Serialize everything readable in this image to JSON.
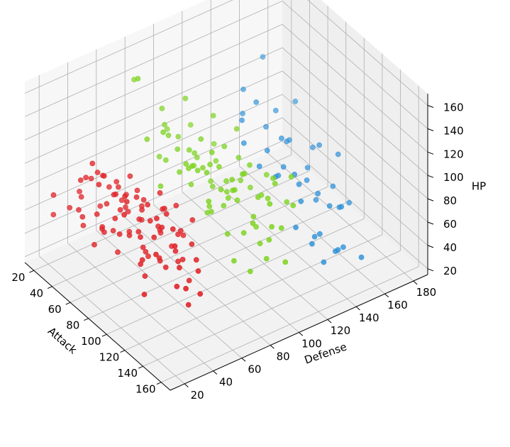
{
  "chart_data": {
    "type": "scatter",
    "title": "",
    "xlabel": "Attack",
    "ylabel": "Defense",
    "zlabel": "HP",
    "xlim": [
      10,
      170
    ],
    "ylim": [
      10,
      190
    ],
    "zlim": [
      15,
      170
    ],
    "xticks": [
      20,
      40,
      60,
      80,
      100,
      120,
      140,
      160
    ],
    "yticks": [
      20,
      40,
      60,
      80,
      100,
      120,
      140,
      160,
      180
    ],
    "zticks": [
      20,
      40,
      60,
      80,
      100,
      120,
      140,
      160
    ],
    "grid": true,
    "legend": "none",
    "series": [
      {
        "color": "#e0262b",
        "points": [
          [
            10,
            30,
            45
          ],
          [
            15,
            45,
            60
          ],
          [
            20,
            35,
            55
          ],
          [
            18,
            25,
            70
          ],
          [
            25,
            40,
            65
          ],
          [
            30,
            50,
            55
          ],
          [
            28,
            45,
            80
          ],
          [
            35,
            35,
            50
          ],
          [
            32,
            55,
            70
          ],
          [
            38,
            60,
            60
          ],
          [
            40,
            45,
            45
          ],
          [
            42,
            30,
            65
          ],
          [
            45,
            50,
            75
          ],
          [
            48,
            40,
            55
          ],
          [
            50,
            55,
            65
          ],
          [
            52,
            65,
            50
          ],
          [
            55,
            45,
            85
          ],
          [
            58,
            35,
            60
          ],
          [
            60,
            60,
            70
          ],
          [
            62,
            50,
            55
          ],
          [
            65,
            40,
            45
          ],
          [
            68,
            55,
            75
          ],
          [
            70,
            45,
            60
          ],
          [
            72,
            65,
            55
          ],
          [
            75,
            35,
            70
          ],
          [
            78,
            60,
            65
          ],
          [
            80,
            50,
            50
          ],
          [
            82,
            70,
            80
          ],
          [
            85,
            45,
            60
          ],
          [
            88,
            55,
            45
          ],
          [
            90,
            40,
            75
          ],
          [
            92,
            65,
            65
          ],
          [
            95,
            50,
            55
          ],
          [
            98,
            35,
            60
          ],
          [
            100,
            60,
            50
          ],
          [
            40,
            30,
            95
          ],
          [
            45,
            35,
            110
          ],
          [
            50,
            40,
            100
          ],
          [
            35,
            45,
            90
          ],
          [
            60,
            30,
            105
          ],
          [
            55,
            55,
            95
          ],
          [
            65,
            45,
            90
          ],
          [
            70,
            55,
            85
          ],
          [
            75,
            40,
            95
          ],
          [
            80,
            35,
            90
          ],
          [
            85,
            60,
            85
          ],
          [
            90,
            45,
            100
          ],
          [
            95,
            55,
            90
          ],
          [
            100,
            45,
            95
          ],
          [
            105,
            40,
            85
          ],
          [
            110,
            50,
            90
          ],
          [
            115,
            35,
            80
          ],
          [
            120,
            45,
            85
          ],
          [
            30,
            35,
            60
          ],
          [
            45,
            60,
            55
          ],
          [
            55,
            30,
            50
          ],
          [
            65,
            70,
            45
          ],
          [
            75,
            55,
            40
          ],
          [
            85,
            65,
            50
          ],
          [
            95,
            40,
            45
          ],
          [
            105,
            60,
            55
          ],
          [
            110,
            30,
            45
          ],
          [
            120,
            55,
            50
          ],
          [
            130,
            40,
            60
          ],
          [
            135,
            45,
            45
          ],
          [
            140,
            50,
            55
          ],
          [
            100,
            35,
            65
          ],
          [
            90,
            70,
            60
          ],
          [
            80,
            45,
            70
          ],
          [
            70,
            35,
            80
          ],
          [
            60,
            45,
            75
          ],
          [
            50,
            50,
            85
          ],
          [
            40,
            55,
            80
          ],
          [
            30,
            40,
            85
          ],
          [
            25,
            55,
            75
          ],
          [
            35,
            65,
            60
          ],
          [
            45,
            45,
            70
          ],
          [
            55,
            60,
            80
          ],
          [
            65,
            55,
            65
          ],
          [
            75,
            65,
            75
          ],
          [
            85,
            50,
            80
          ],
          [
            95,
            65,
            70
          ],
          [
            105,
            55,
            65
          ],
          [
            115,
            60,
            75
          ],
          [
            125,
            45,
            70
          ],
          [
            130,
            55,
            65
          ],
          [
            60,
            40,
            60
          ],
          [
            70,
            50,
            90
          ],
          [
            80,
            60,
            95
          ],
          [
            90,
            55,
            75
          ],
          [
            50,
            35,
            70
          ],
          [
            110,
            45,
            60
          ],
          [
            120,
            60,
            65
          ],
          [
            100,
            70,
            80
          ],
          [
            140,
            40,
            65
          ]
        ]
      },
      {
        "color": "#7ed321",
        "points": [
          [
            20,
            80,
            140
          ],
          [
            40,
            70,
            160
          ],
          [
            35,
            90,
            120
          ],
          [
            50,
            85,
            110
          ],
          [
            60,
            75,
            125
          ],
          [
            45,
            95,
            100
          ],
          [
            70,
            80,
            95
          ],
          [
            55,
            100,
            90
          ],
          [
            65,
            90,
            105
          ],
          [
            75,
            85,
            85
          ],
          [
            80,
            95,
            100
          ],
          [
            85,
            75,
            115
          ],
          [
            90,
            100,
            90
          ],
          [
            95,
            85,
            80
          ],
          [
            100,
            90,
            95
          ],
          [
            105,
            80,
            85
          ],
          [
            110,
            95,
            90
          ],
          [
            115,
            85,
            70
          ],
          [
            120,
            100,
            80
          ],
          [
            125,
            90,
            75
          ],
          [
            130,
            80,
            60
          ],
          [
            135,
            95,
            70
          ],
          [
            140,
            85,
            55
          ],
          [
            60,
            110,
            120
          ],
          [
            70,
            120,
            110
          ],
          [
            80,
            115,
            95
          ],
          [
            90,
            110,
            85
          ],
          [
            100,
            105,
            100
          ],
          [
            110,
            120,
            95
          ],
          [
            120,
            110,
            90
          ],
          [
            50,
            70,
            115
          ],
          [
            60,
            85,
            105
          ],
          [
            70,
            95,
            115
          ],
          [
            80,
            105,
            110
          ],
          [
            90,
            90,
            120
          ],
          [
            100,
            110,
            105
          ],
          [
            110,
            100,
            110
          ],
          [
            120,
            115,
            100
          ],
          [
            130,
            105,
            95
          ],
          [
            140,
            100,
            85
          ],
          [
            45,
            100,
            130
          ],
          [
            55,
            80,
            95
          ],
          [
            65,
            70,
            85
          ],
          [
            75,
            100,
            75
          ],
          [
            85,
            90,
            65
          ],
          [
            95,
            95,
            75
          ],
          [
            105,
            115,
            80
          ],
          [
            115,
            105,
            65
          ],
          [
            125,
            120,
            85
          ],
          [
            135,
            110,
            75
          ],
          [
            150,
            90,
            70
          ],
          [
            140,
            115,
            95
          ],
          [
            130,
            120,
            110
          ],
          [
            120,
            85,
            120
          ],
          [
            110,
            75,
            100
          ],
          [
            100,
            80,
            115
          ],
          [
            90,
            80,
            110
          ],
          [
            80,
            80,
            105
          ],
          [
            70,
            90,
            95
          ],
          [
            60,
            95,
            85
          ],
          [
            50,
            105,
            80
          ],
          [
            40,
            85,
            85
          ],
          [
            30,
            95,
            100
          ],
          [
            25,
            100,
            90
          ],
          [
            35,
            110,
            95
          ],
          [
            45,
            120,
            80
          ],
          [
            55,
            115,
            75
          ],
          [
            65,
            105,
            70
          ],
          [
            75,
            110,
            65
          ],
          [
            85,
            120,
            70
          ],
          [
            95,
            125,
            85
          ],
          [
            105,
            95,
            95
          ],
          [
            115,
            90,
            105
          ],
          [
            125,
            100,
            100
          ],
          [
            135,
            90,
            90
          ],
          [
            145,
            95,
            80
          ],
          [
            155,
            100,
            65
          ],
          [
            100,
            95,
            85
          ],
          [
            90,
            95,
            105
          ],
          [
            80,
            90,
            100
          ]
        ]
      },
      {
        "color": "#2c90d8",
        "points": [
          [
            20,
            170,
            110
          ],
          [
            40,
            180,
            80
          ],
          [
            30,
            150,
            100
          ],
          [
            50,
            160,
            90
          ],
          [
            60,
            140,
            115
          ],
          [
            70,
            155,
            80
          ],
          [
            80,
            145,
            95
          ],
          [
            90,
            165,
            85
          ],
          [
            100,
            150,
            70
          ],
          [
            110,
            135,
            90
          ],
          [
            120,
            145,
            75
          ],
          [
            130,
            155,
            65
          ],
          [
            140,
            130,
            60
          ],
          [
            150,
            140,
            50
          ],
          [
            160,
            150,
            45
          ],
          [
            60,
            130,
            105
          ],
          [
            70,
            125,
            95
          ],
          [
            80,
            135,
            90
          ],
          [
            90,
            140,
            80
          ],
          [
            100,
            130,
            85
          ],
          [
            110,
            150,
            60
          ],
          [
            120,
            160,
            55
          ],
          [
            130,
            140,
            50
          ],
          [
            140,
            150,
            40
          ],
          [
            150,
            130,
            45
          ],
          [
            75,
            170,
            70
          ],
          [
            85,
            160,
            65
          ],
          [
            95,
            175,
            75
          ],
          [
            105,
            165,
            60
          ],
          [
            115,
            170,
            50
          ],
          [
            45,
            140,
            95
          ],
          [
            55,
            150,
            85
          ],
          [
            65,
            160,
            75
          ],
          [
            125,
            130,
            80
          ],
          [
            135,
            120,
            70
          ],
          [
            145,
            125,
            60
          ],
          [
            155,
            135,
            55
          ],
          [
            95,
            120,
            95
          ],
          [
            105,
            125,
            90
          ],
          [
            115,
            135,
            85
          ],
          [
            125,
            150,
            65
          ]
        ]
      }
    ]
  }
}
